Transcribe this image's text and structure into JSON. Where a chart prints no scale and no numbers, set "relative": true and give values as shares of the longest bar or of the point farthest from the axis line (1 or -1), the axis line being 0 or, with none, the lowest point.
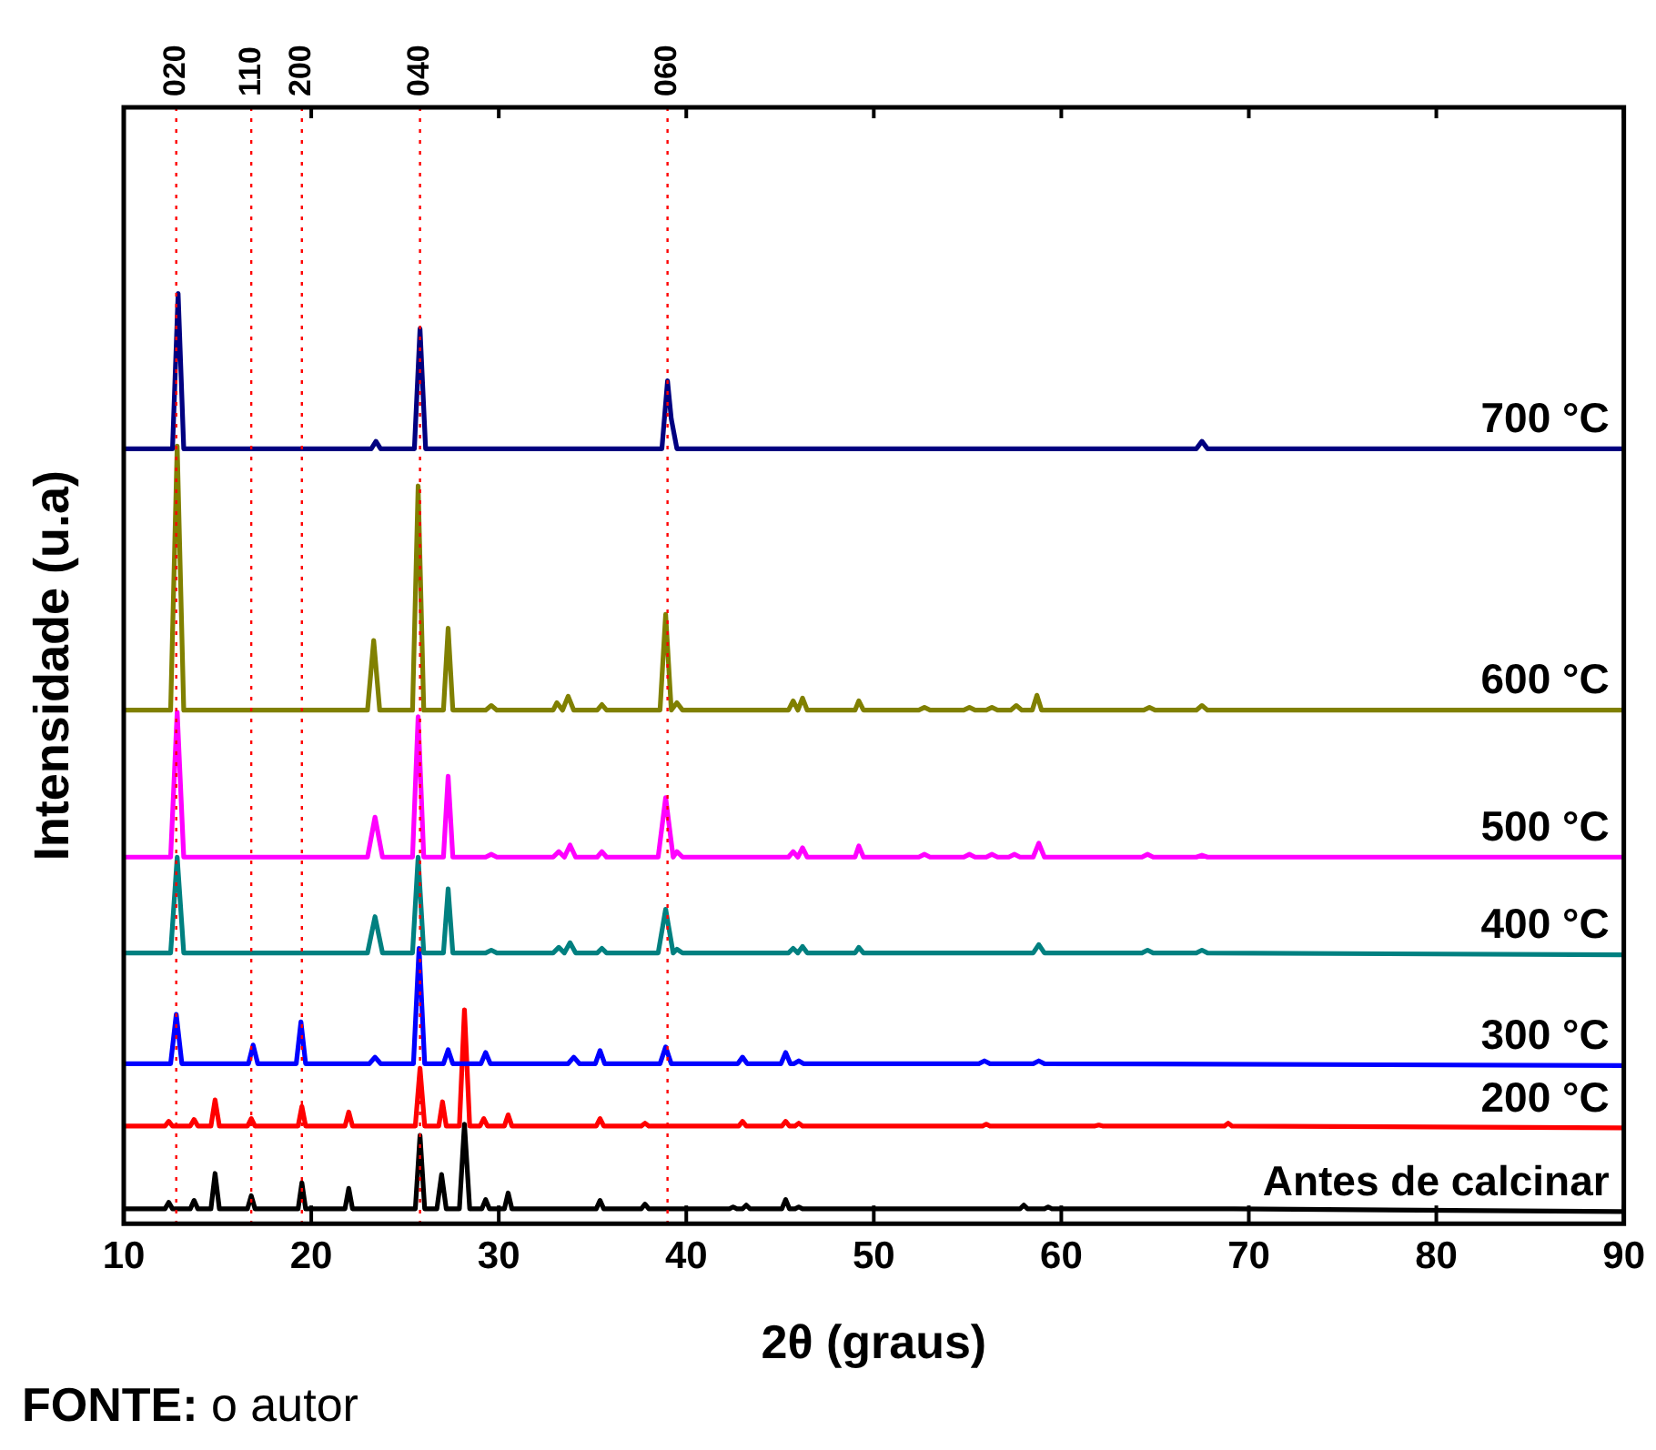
{
  "chart_data": {
    "type": "line",
    "relative": true,
    "xlabel": "2θ (graus)",
    "ylabel": "Intensidade (u.a)",
    "xlim": [
      10,
      90
    ],
    "xticks": [
      10,
      20,
      30,
      40,
      50,
      60,
      70,
      80,
      90
    ],
    "grid": false,
    "legend": false,
    "tick_labels": "x",
    "marker": "none",
    "line_style": "solid",
    "ref_lines": [
      {
        "axis": "x",
        "value": 12.8,
        "color": "#ff0000",
        "line_style": "dotted"
      },
      {
        "axis": "x",
        "value": 16.8,
        "color": "#ff0000",
        "line_style": "dotted"
      },
      {
        "axis": "x",
        "value": 19.5,
        "color": "#ff0000",
        "line_style": "dotted"
      },
      {
        "axis": "x",
        "value": 25.8,
        "color": "#ff0000",
        "line_style": "dotted"
      },
      {
        "axis": "x",
        "value": 39.0,
        "color": "#ff0000",
        "line_style": "dotted"
      }
    ],
    "annotations": [
      "020",
      "110",
      "200",
      "040",
      "060",
      "FONTE: o autor"
    ],
    "series": [
      {
        "name": "700 °C",
        "color": "#000080",
        "x": [
          10,
          12.6,
          12.9,
          13.2,
          23.2,
          23.45,
          23.7,
          25.5,
          25.8,
          26.1,
          38.7,
          39.0,
          39.2,
          39.5,
          67.2,
          67.5,
          67.8,
          90
        ],
        "values": [
          0.833,
          0.833,
          1.0,
          0.833,
          0.833,
          0.841,
          0.833,
          0.833,
          0.962,
          0.833,
          0.833,
          0.906,
          0.865,
          0.833,
          0.833,
          0.841,
          0.833,
          0.833
        ]
      },
      {
        "name": "600 °C",
        "color": "#808000",
        "x": [
          10,
          12.5,
          12.85,
          13.2,
          23.0,
          23.33,
          23.65,
          25.4,
          25.7,
          26.0,
          27.05,
          27.3,
          27.55,
          29.3,
          29.6,
          29.9,
          32.9,
          33.1,
          33.4,
          33.7,
          34.0,
          35.25,
          35.5,
          35.75,
          38.6,
          38.9,
          39.2,
          39.5,
          39.8,
          45.45,
          45.7,
          45.95,
          46.2,
          46.45,
          49.0,
          49.2,
          49.45,
          52.4,
          52.7,
          53.0,
          54.8,
          55.1,
          55.4,
          56.0,
          56.3,
          56.6,
          57.3,
          57.6,
          57.9,
          58.45,
          58.7,
          58.95,
          64.4,
          64.7,
          65.0,
          67.2,
          67.5,
          67.8,
          90
        ],
        "values": [
          0.552,
          0.552,
          0.836,
          0.552,
          0.552,
          0.627,
          0.552,
          0.552,
          0.793,
          0.552,
          0.552,
          0.64,
          0.552,
          0.552,
          0.557,
          0.552,
          0.552,
          0.56,
          0.552,
          0.567,
          0.552,
          0.552,
          0.558,
          0.552,
          0.552,
          0.655,
          0.552,
          0.56,
          0.552,
          0.552,
          0.562,
          0.552,
          0.565,
          0.552,
          0.552,
          0.562,
          0.552,
          0.552,
          0.555,
          0.552,
          0.552,
          0.555,
          0.552,
          0.552,
          0.555,
          0.552,
          0.552,
          0.557,
          0.552,
          0.552,
          0.568,
          0.552,
          0.552,
          0.555,
          0.552,
          0.552,
          0.557,
          0.552,
          0.552
        ]
      },
      {
        "name": "500 °C",
        "color": "#ff00ff",
        "x": [
          10,
          12.5,
          12.85,
          13.2,
          23.0,
          23.4,
          23.8,
          25.4,
          25.7,
          26.0,
          27.05,
          27.3,
          27.55,
          29.3,
          29.6,
          29.9,
          32.9,
          33.2,
          33.5,
          33.8,
          34.1,
          35.25,
          35.5,
          35.75,
          38.5,
          38.9,
          39.3,
          39.5,
          39.8,
          45.45,
          45.7,
          45.95,
          46.2,
          46.45,
          49.0,
          49.2,
          49.45,
          52.4,
          52.7,
          53.0,
          54.8,
          55.1,
          55.4,
          56.0,
          56.3,
          56.6,
          57.2,
          57.5,
          57.8,
          58.5,
          58.8,
          59.1,
          64.3,
          64.6,
          64.9,
          67.2,
          67.5,
          67.8,
          90
        ],
        "values": [
          0.394,
          0.394,
          0.55,
          0.394,
          0.394,
          0.437,
          0.394,
          0.394,
          0.545,
          0.394,
          0.394,
          0.481,
          0.394,
          0.394,
          0.397,
          0.394,
          0.394,
          0.4,
          0.394,
          0.407,
          0.394,
          0.394,
          0.4,
          0.394,
          0.394,
          0.458,
          0.394,
          0.4,
          0.394,
          0.394,
          0.4,
          0.394,
          0.404,
          0.394,
          0.394,
          0.406,
          0.394,
          0.394,
          0.397,
          0.394,
          0.394,
          0.397,
          0.394,
          0.394,
          0.397,
          0.394,
          0.394,
          0.397,
          0.394,
          0.394,
          0.409,
          0.394,
          0.394,
          0.397,
          0.394,
          0.394,
          0.396,
          0.394,
          0.394
        ]
      },
      {
        "name": "400 °C",
        "color": "#008080",
        "x": [
          10,
          12.5,
          12.85,
          13.2,
          23.0,
          23.4,
          23.8,
          25.4,
          25.7,
          26.0,
          27.05,
          27.3,
          27.55,
          29.3,
          29.6,
          29.9,
          32.9,
          33.2,
          33.5,
          33.8,
          34.1,
          35.25,
          35.5,
          35.75,
          38.5,
          38.9,
          39.3,
          39.5,
          39.8,
          45.45,
          45.7,
          45.95,
          46.2,
          46.45,
          49.0,
          49.2,
          49.45,
          58.5,
          58.8,
          59.1,
          64.3,
          64.6,
          64.9,
          67.2,
          67.5,
          67.8,
          90
        ],
        "values": [
          0.291,
          0.291,
          0.394,
          0.291,
          0.291,
          0.33,
          0.291,
          0.291,
          0.394,
          0.291,
          0.291,
          0.36,
          0.291,
          0.291,
          0.294,
          0.291,
          0.291,
          0.297,
          0.291,
          0.302,
          0.291,
          0.291,
          0.296,
          0.291,
          0.291,
          0.338,
          0.291,
          0.295,
          0.291,
          0.291,
          0.296,
          0.291,
          0.298,
          0.291,
          0.291,
          0.297,
          0.291,
          0.291,
          0.3,
          0.291,
          0.291,
          0.294,
          0.291,
          0.291,
          0.294,
          0.291,
          0.289
        ]
      },
      {
        "name": "300 °C",
        "color": "#0000ff",
        "x": [
          10,
          12.5,
          12.8,
          13.1,
          16.65,
          16.9,
          17.15,
          19.2,
          19.45,
          19.7,
          23.1,
          23.4,
          23.7,
          25.45,
          25.75,
          26.05,
          27.05,
          27.3,
          27.55,
          29.05,
          29.3,
          29.55,
          33.7,
          34.0,
          34.3,
          35.15,
          35.4,
          35.65,
          38.6,
          38.9,
          39.2,
          42.75,
          43.0,
          43.25,
          45.05,
          45.3,
          45.55,
          45.75,
          46.0,
          46.25,
          55.6,
          55.9,
          56.2,
          58.5,
          58.8,
          59.1,
          90
        ],
        "values": [
          0.172,
          0.172,
          0.225,
          0.172,
          0.172,
          0.192,
          0.172,
          0.172,
          0.217,
          0.172,
          0.172,
          0.179,
          0.172,
          0.172,
          0.296,
          0.172,
          0.172,
          0.187,
          0.172,
          0.172,
          0.184,
          0.172,
          0.172,
          0.179,
          0.172,
          0.172,
          0.186,
          0.172,
          0.172,
          0.19,
          0.172,
          0.172,
          0.179,
          0.172,
          0.172,
          0.184,
          0.172,
          0.172,
          0.175,
          0.172,
          0.172,
          0.175,
          0.172,
          0.172,
          0.175,
          0.172,
          0.17
        ]
      },
      {
        "name": "200 °C",
        "color": "#ff0000",
        "x": [
          10,
          12.2,
          12.4,
          12.6,
          13.55,
          13.75,
          13.95,
          14.65,
          14.87,
          15.1,
          16.6,
          16.8,
          17.0,
          19.3,
          19.5,
          19.7,
          21.8,
          22.0,
          22.2,
          25.55,
          25.8,
          26.05,
          26.8,
          27.0,
          27.2,
          27.9,
          28.17,
          28.45,
          29.0,
          29.2,
          29.4,
          30.3,
          30.5,
          30.7,
          35.2,
          35.4,
          35.6,
          37.6,
          37.8,
          38.0,
          42.8,
          43.0,
          43.2,
          45.1,
          45.3,
          45.5,
          45.8,
          46.0,
          46.2,
          55.8,
          56.0,
          56.2,
          61.8,
          62.0,
          62.2,
          68.7,
          68.9,
          69.1,
          90
        ],
        "values": [
          0.105,
          0.105,
          0.11,
          0.105,
          0.105,
          0.112,
          0.105,
          0.105,
          0.133,
          0.105,
          0.105,
          0.113,
          0.105,
          0.105,
          0.126,
          0.105,
          0.105,
          0.12,
          0.105,
          0.105,
          0.167,
          0.105,
          0.105,
          0.131,
          0.105,
          0.105,
          0.23,
          0.105,
          0.105,
          0.113,
          0.105,
          0.105,
          0.117,
          0.105,
          0.105,
          0.113,
          0.105,
          0.105,
          0.108,
          0.105,
          0.105,
          0.11,
          0.105,
          0.105,
          0.11,
          0.105,
          0.105,
          0.108,
          0.105,
          0.105,
          0.107,
          0.105,
          0.105,
          0.106,
          0.105,
          0.105,
          0.108,
          0.105,
          0.103
        ]
      },
      {
        "name": "Antes de calcinar",
        "color": "#000000",
        "x": [
          10,
          12.2,
          12.4,
          12.6,
          13.55,
          13.75,
          13.95,
          14.65,
          14.87,
          15.1,
          16.6,
          16.8,
          17.0,
          19.3,
          19.5,
          19.7,
          21.8,
          22.0,
          22.2,
          25.55,
          25.8,
          26.05,
          26.7,
          26.95,
          27.2,
          27.9,
          28.17,
          28.45,
          29.1,
          29.3,
          29.5,
          30.3,
          30.5,
          30.7,
          35.2,
          35.4,
          35.6,
          37.6,
          37.8,
          38.0,
          42.3,
          42.5,
          42.7,
          43.0,
          43.2,
          43.4,
          45.1,
          45.3,
          45.5,
          45.8,
          46.0,
          46.2,
          57.8,
          58.0,
          58.2,
          59.1,
          59.3,
          59.5,
          68.8,
          69.0,
          69.2,
          90
        ],
        "values": [
          0.016,
          0.016,
          0.023,
          0.016,
          0.016,
          0.025,
          0.016,
          0.016,
          0.054,
          0.016,
          0.016,
          0.03,
          0.016,
          0.016,
          0.044,
          0.016,
          0.016,
          0.038,
          0.016,
          0.016,
          0.095,
          0.016,
          0.016,
          0.053,
          0.016,
          0.016,
          0.107,
          0.016,
          0.016,
          0.026,
          0.016,
          0.016,
          0.033,
          0.016,
          0.016,
          0.025,
          0.016,
          0.016,
          0.021,
          0.016,
          0.016,
          0.018,
          0.016,
          0.016,
          0.02,
          0.016,
          0.016,
          0.026,
          0.016,
          0.016,
          0.018,
          0.016,
          0.016,
          0.02,
          0.016,
          0.016,
          0.018,
          0.016,
          0.016,
          0.016,
          0.016,
          0.013
        ]
      }
    ]
  }
}
